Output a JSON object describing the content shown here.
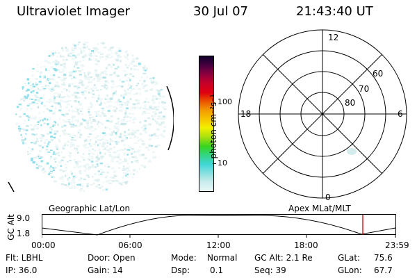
{
  "header": {
    "title": "Ultraviolet Imager",
    "date": "30 Jul 07",
    "time": "21:43:40 UT"
  },
  "colorbar": {
    "unit_label": "photon cm⁻²s⁻¹",
    "ticks": [
      "100",
      "10"
    ],
    "colors": [
      "#e8f6f6",
      "#c9ecec",
      "#8ce0e0",
      "#3fd6d6",
      "#33d680",
      "#36d420",
      "#a8e010",
      "#f2f000",
      "#f6c800",
      "#f39a00",
      "#ea4f00",
      "#e00010",
      "#c8002a",
      "#8a0040",
      "#4a0040",
      "#10002a"
    ]
  },
  "polar": {
    "mlt_labels": {
      "top": "12",
      "left": "18",
      "right": "6",
      "bottom": "0"
    },
    "lat_labels": [
      "60",
      "70",
      "80"
    ]
  },
  "timeline": {
    "y_axis_label": "GC Alt",
    "y_ticks": [
      "9.0",
      "1.8"
    ],
    "left_caption": "Geographic Lat/Lon",
    "right_caption": "Apex MLat/MLT",
    "x_ticks": [
      "00:00",
      "06:00",
      "12:00",
      "18:00",
      "23:59"
    ]
  },
  "status": {
    "row1": {
      "flt": "Flt: LBHL",
      "door": "Door: Open",
      "mode_label": "Mode:",
      "mode_value": "Normal",
      "gc_alt": "GC Alt: 2.1 Re",
      "glat_label": "GLat:",
      "glat_value": "75.6"
    },
    "row2": {
      "ip": "IP: 36.0",
      "gain": "Gain: 14",
      "dsp_label": "Dsp:",
      "dsp_value": "0.1",
      "seq": "Seq: 39",
      "glon_label": "GLon:",
      "glon_value": "67.7"
    }
  }
}
